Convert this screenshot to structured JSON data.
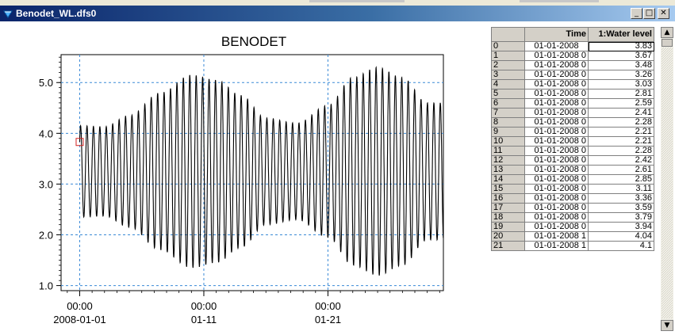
{
  "window": {
    "title": "Benodet_WL.dfs0",
    "buttons": {
      "minimize": "_",
      "maximize": "□",
      "close": "✕"
    }
  },
  "colors": {
    "titlebar_start": "#0a246a",
    "titlebar_end": "#a6caf0",
    "grid_line": "#3a8ad6",
    "series": "#000000",
    "marker": "#d22222"
  },
  "chart_data": {
    "type": "line",
    "title": "BENODET",
    "xlabel": "",
    "ylabel": "",
    "ylim": [
      0.9,
      5.55
    ],
    "yticks": [
      "1.0",
      "2.0",
      "3.0",
      "4.0",
      "5.0"
    ],
    "xticks": [
      {
        "time": "00:00",
        "date": "2008-01-01",
        "day": 0
      },
      {
        "time": "00:00",
        "date": "01-11",
        "day": 10
      },
      {
        "time": "00:00",
        "date": "01-21",
        "day": 20
      }
    ],
    "xlim_days": [
      -1.5,
      29.3
    ],
    "grid": true,
    "series": [
      {
        "x_start": "2008-01-01 00:00",
        "period_hours": 12.42,
        "mean": 3.25,
        "amplitude_envelope_days": [
          0,
          2,
          4,
          6.5,
          9,
          11,
          13,
          15,
          17.5,
          20,
          22,
          24,
          26,
          28
        ],
        "amplitude_envelope_values": [
          0.9,
          0.88,
          1.1,
          1.55,
          1.9,
          1.8,
          1.5,
          1.05,
          0.95,
          1.3,
          1.85,
          2.05,
          1.85,
          1.35
        ],
        "first_point": 3.83
      }
    ],
    "marker_value": 3.83
  },
  "table": {
    "columns": [
      "",
      "Time",
      "1:Water level"
    ],
    "rows": [
      {
        "index": "0",
        "time": "01-01-2008",
        "value": "3.83"
      },
      {
        "index": "1",
        "time": "01-01-2008 0",
        "value": "3.67"
      },
      {
        "index": "2",
        "time": "01-01-2008 0",
        "value": "3.48"
      },
      {
        "index": "3",
        "time": "01-01-2008 0",
        "value": "3.26"
      },
      {
        "index": "4",
        "time": "01-01-2008 0",
        "value": "3.03"
      },
      {
        "index": "5",
        "time": "01-01-2008 0",
        "value": "2.81"
      },
      {
        "index": "6",
        "time": "01-01-2008 0",
        "value": "2.59"
      },
      {
        "index": "7",
        "time": "01-01-2008 0",
        "value": "2.41"
      },
      {
        "index": "8",
        "time": "01-01-2008 0",
        "value": "2.28"
      },
      {
        "index": "9",
        "time": "01-01-2008 0",
        "value": "2.21"
      },
      {
        "index": "10",
        "time": "01-01-2008 0",
        "value": "2.21"
      },
      {
        "index": "11",
        "time": "01-01-2008 0",
        "value": "2.28"
      },
      {
        "index": "12",
        "time": "01-01-2008 0",
        "value": "2.42"
      },
      {
        "index": "13",
        "time": "01-01-2008 0",
        "value": "2.61"
      },
      {
        "index": "14",
        "time": "01-01-2008 0",
        "value": "2.85"
      },
      {
        "index": "15",
        "time": "01-01-2008 0",
        "value": "3.11"
      },
      {
        "index": "16",
        "time": "01-01-2008 0",
        "value": "3.36"
      },
      {
        "index": "17",
        "time": "01-01-2008 0",
        "value": "3.59"
      },
      {
        "index": "18",
        "time": "01-01-2008 0",
        "value": "3.79"
      },
      {
        "index": "19",
        "time": "01-01-2008 0",
        "value": "3.94"
      },
      {
        "index": "20",
        "time": "01-01-2008 1",
        "value": "4.04"
      },
      {
        "index": "21",
        "time": "01-01-2008 1",
        "value": "4.1"
      }
    ]
  },
  "scrollbar": {
    "up": "▲",
    "down": "▼"
  }
}
